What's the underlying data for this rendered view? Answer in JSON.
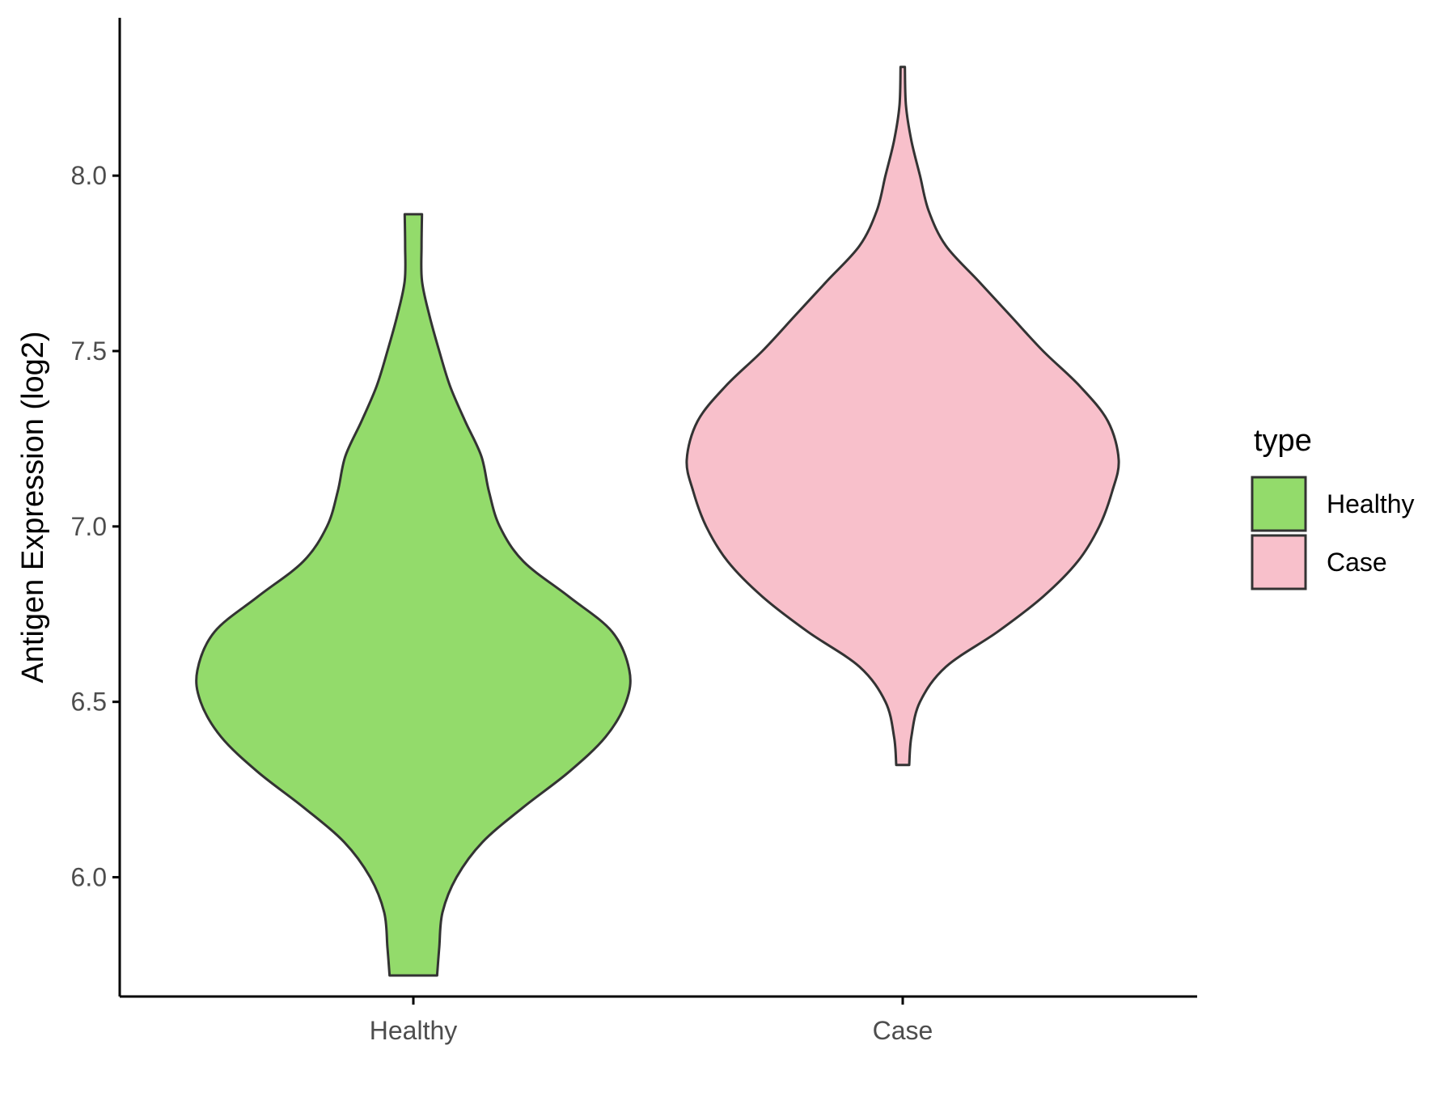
{
  "chart_data": {
    "type": "violin",
    "title": "",
    "xlabel": "",
    "ylabel": "Antigen Expression (log2)",
    "categories": [
      "Healthy",
      "Case"
    ],
    "ylim": [
      5.66,
      8.45
    ],
    "yticks": [
      6.0,
      6.5,
      7.0,
      7.5,
      8.0
    ],
    "ytick_labels": [
      "6.0",
      "6.5",
      "7.0",
      "7.5",
      "8.0"
    ],
    "grid": false,
    "legend": {
      "title": "type",
      "placement": "right",
      "entries": [
        "Healthy",
        "Case"
      ]
    },
    "series": [
      {
        "name": "Healthy",
        "color": "#93DB6B",
        "min": 5.72,
        "max": 7.89,
        "density_profile": [
          [
            5.72,
            0.11
          ],
          [
            5.8,
            0.12
          ],
          [
            5.9,
            0.135
          ],
          [
            6.0,
            0.2
          ],
          [
            6.1,
            0.32
          ],
          [
            6.2,
            0.51
          ],
          [
            6.3,
            0.72
          ],
          [
            6.4,
            0.89
          ],
          [
            6.5,
            0.985
          ],
          [
            6.59,
            1.0
          ],
          [
            6.7,
            0.92
          ],
          [
            6.8,
            0.72
          ],
          [
            6.9,
            0.51
          ],
          [
            7.0,
            0.4
          ],
          [
            7.1,
            0.35
          ],
          [
            7.2,
            0.315
          ],
          [
            7.3,
            0.24
          ],
          [
            7.4,
            0.17
          ],
          [
            7.5,
            0.12
          ],
          [
            7.6,
            0.075
          ],
          [
            7.7,
            0.04
          ],
          [
            7.8,
            0.038
          ],
          [
            7.89,
            0.04
          ]
        ]
      },
      {
        "name": "Case",
        "color": "#F8C0CB",
        "min": 6.32,
        "max": 8.31,
        "density_profile": [
          [
            6.32,
            0.03
          ],
          [
            6.4,
            0.04
          ],
          [
            6.5,
            0.08
          ],
          [
            6.6,
            0.2
          ],
          [
            6.7,
            0.44
          ],
          [
            6.8,
            0.65
          ],
          [
            6.9,
            0.81
          ],
          [
            7.0,
            0.91
          ],
          [
            7.1,
            0.97
          ],
          [
            7.19,
            1.0
          ],
          [
            7.3,
            0.95
          ],
          [
            7.4,
            0.82
          ],
          [
            7.5,
            0.65
          ],
          [
            7.6,
            0.5
          ],
          [
            7.7,
            0.35
          ],
          [
            7.8,
            0.2
          ],
          [
            7.9,
            0.12
          ],
          [
            8.0,
            0.08
          ],
          [
            8.1,
            0.04
          ],
          [
            8.2,
            0.015
          ],
          [
            8.31,
            0.01
          ]
        ]
      }
    ]
  }
}
